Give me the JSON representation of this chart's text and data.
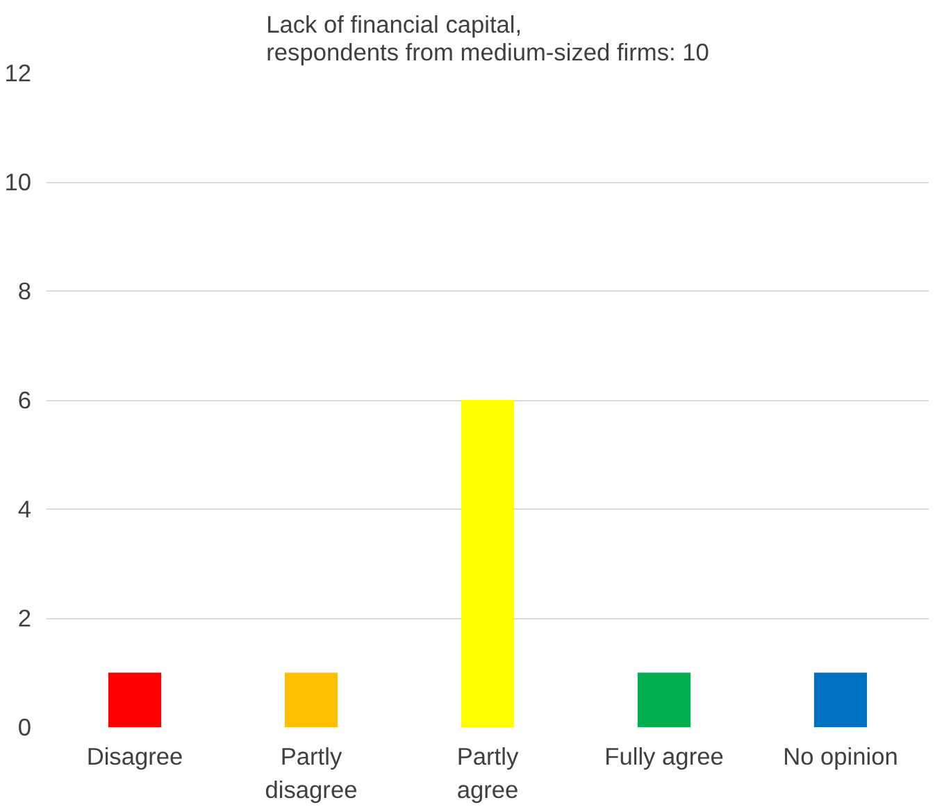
{
  "chart_data": {
    "type": "bar",
    "title": "Lack of financial capital,\nrespondents from medium-sized firms: 10",
    "categories": [
      "Disagree",
      "Partly disagree",
      "Partly agree",
      "Fully agree",
      "No opinion"
    ],
    "values": [
      1,
      1,
      6,
      1,
      1
    ],
    "colors": [
      "#ff0000",
      "#ffc000",
      "#ffff00",
      "#00b050",
      "#0070c0"
    ],
    "ylim": [
      0,
      12
    ],
    "yticks": [
      0,
      2,
      4,
      6,
      8,
      10,
      12
    ],
    "grid": "y"
  }
}
